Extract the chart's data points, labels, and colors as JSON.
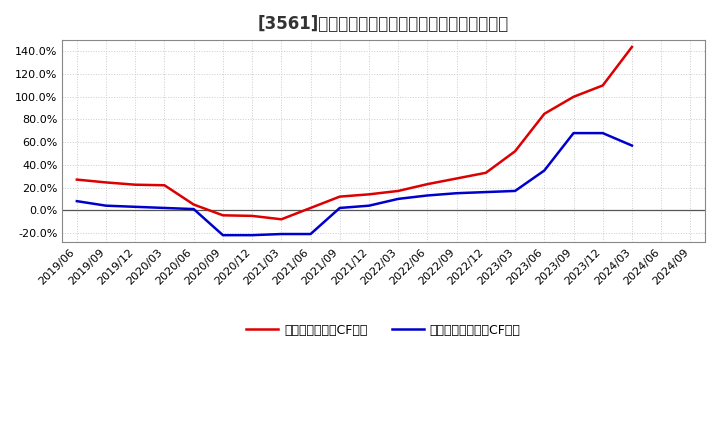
{
  "title": "[3561]　有利子負債キャッシュフロー比率の推移",
  "background_color": "#ffffff",
  "plot_background_color": "#ffffff",
  "grid_color": "#cccccc",
  "x_labels": [
    "2019/06",
    "2019/09",
    "2019/12",
    "2020/03",
    "2020/06",
    "2020/09",
    "2020/12",
    "2021/03",
    "2021/06",
    "2021/09",
    "2021/12",
    "2022/03",
    "2022/06",
    "2022/09",
    "2022/12",
    "2023/03",
    "2023/06",
    "2023/09",
    "2023/12",
    "2024/03",
    "2024/06",
    "2024/09"
  ],
  "red_series": {
    "label": "有利子負債営業CF比率",
    "color": "#dd0000",
    "values": [
      27.0,
      24.5,
      22.5,
      22.0,
      5.0,
      -4.5,
      -5.0,
      -8.0,
      2.0,
      12.0,
      14.0,
      17.0,
      23.0,
      28.0,
      33.0,
      52.0,
      85.0,
      100.0,
      110.0,
      144.0,
      null,
      null
    ]
  },
  "blue_series": {
    "label": "有利子負債フリーCF比率",
    "color": "#0000cc",
    "values": [
      8.0,
      4.0,
      3.0,
      2.0,
      1.0,
      -22.0,
      -22.0,
      -21.0,
      -21.0,
      2.0,
      4.0,
      10.0,
      13.0,
      15.0,
      16.0,
      17.0,
      35.0,
      68.0,
      68.0,
      57.0,
      null,
      null
    ]
  },
  "ylim": [
    -28,
    150
  ],
  "yticks": [
    -20.0,
    0.0,
    20.0,
    40.0,
    60.0,
    80.0,
    100.0,
    120.0,
    140.0
  ],
  "title_fontsize": 12,
  "tick_fontsize": 8,
  "legend_fontsize": 9,
  "linewidth": 1.8
}
